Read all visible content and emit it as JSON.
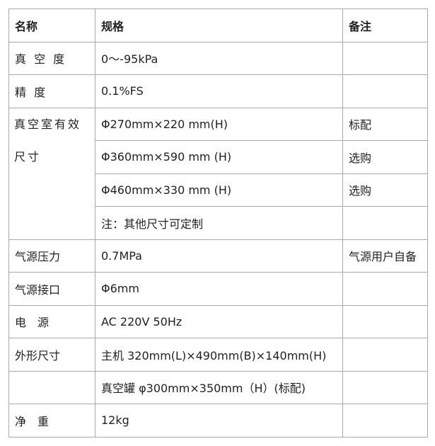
{
  "header": {
    "name": "名称",
    "spec": "规格",
    "note": "备注"
  },
  "rows": {
    "vacuum": {
      "name": "真 空 度",
      "spec": "0～-95kPa",
      "note": ""
    },
    "precision": {
      "name": "精  度",
      "spec": "0.1%FS",
      "note": ""
    },
    "chamber": {
      "name_line1": "真空室有效",
      "name_line2": "尺寸",
      "options": [
        {
          "spec": "Φ270mm×220 mm(H)",
          "note": "标配"
        },
        {
          "spec": "Φ360mm×590 mm (H)",
          "note": "选购"
        },
        {
          "spec": "Φ460mm×330 mm (H)",
          "note": "选购"
        },
        {
          "spec": "注：其他尺寸可定制",
          "note": ""
        }
      ]
    },
    "air_pressure": {
      "name": "气源压力",
      "spec": "0.7MPa",
      "note": "气源用户自备"
    },
    "air_port": {
      "name": "气源接口",
      "spec": "Φ6mm",
      "note": ""
    },
    "power": {
      "name": "电　源",
      "spec": "AC 220V 50Hz",
      "note": ""
    },
    "dimensions": {
      "name": "外形尺寸",
      "spec_main": "主机 320mm(L)×490mm(B)×140mm(H)",
      "spec_tank": "真空罐 φ300mm×350mm（H）(标配)"
    },
    "weight": {
      "name": "净　重",
      "spec": "12kg",
      "note": ""
    }
  }
}
